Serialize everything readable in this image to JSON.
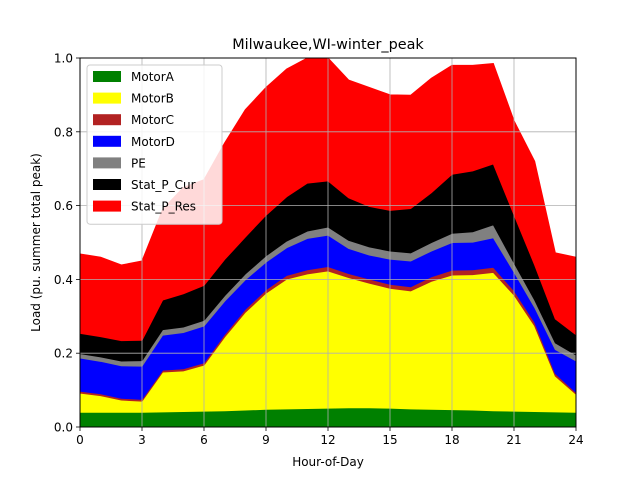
{
  "chart_data": {
    "type": "area",
    "stacked": true,
    "title": "Milwaukee,WI-winter_peak",
    "xlabel": "Hour-of-Day",
    "ylabel": "Load (pu. summer total peak)",
    "xlim": [
      0,
      24
    ],
    "ylim": [
      0,
      1.0
    ],
    "xticks": [
      "0",
      "3",
      "6",
      "9",
      "12",
      "15",
      "18",
      "21",
      "24"
    ],
    "yticks": [
      "0.0",
      "0.2",
      "0.4",
      "0.6",
      "0.8",
      "1.0"
    ],
    "grid": true,
    "legend_position": "upper-left",
    "x": [
      0,
      1,
      2,
      3,
      4,
      5,
      6,
      7,
      8,
      9,
      10,
      11,
      12,
      13,
      14,
      15,
      16,
      17,
      18,
      19,
      20,
      21,
      22,
      23,
      24
    ],
    "series": [
      {
        "name": "MotorA",
        "color": "#008000",
        "values": [
          0.04,
          0.04,
          0.04,
          0.04,
          0.041,
          0.042,
          0.043,
          0.044,
          0.046,
          0.048,
          0.049,
          0.05,
          0.051,
          0.052,
          0.052,
          0.051,
          0.049,
          0.048,
          0.047,
          0.046,
          0.044,
          0.043,
          0.042,
          0.041,
          0.04
        ]
      },
      {
        "name": "MotorB",
        "color": "#ffff00",
        "values": [
          0.052,
          0.045,
          0.033,
          0.03,
          0.108,
          0.11,
          0.125,
          0.2,
          0.265,
          0.315,
          0.352,
          0.365,
          0.372,
          0.353,
          0.338,
          0.325,
          0.32,
          0.347,
          0.365,
          0.367,
          0.375,
          0.315,
          0.232,
          0.097,
          0.049
        ]
      },
      {
        "name": "MotorC",
        "color": "#b22222",
        "values": [
          0.005,
          0.005,
          0.005,
          0.005,
          0.005,
          0.006,
          0.006,
          0.007,
          0.008,
          0.009,
          0.01,
          0.011,
          0.012,
          0.011,
          0.011,
          0.011,
          0.011,
          0.012,
          0.013,
          0.013,
          0.014,
          0.012,
          0.01,
          0.007,
          0.005
        ]
      },
      {
        "name": "MotorD",
        "color": "#0000ff",
        "values": [
          0.09,
          0.088,
          0.088,
          0.09,
          0.095,
          0.098,
          0.1,
          0.09,
          0.08,
          0.075,
          0.075,
          0.085,
          0.085,
          0.068,
          0.065,
          0.068,
          0.07,
          0.07,
          0.075,
          0.075,
          0.08,
          0.05,
          0.04,
          0.065,
          0.085
        ]
      },
      {
        "name": "PE",
        "color": "#808080",
        "values": [
          0.012,
          0.012,
          0.013,
          0.015,
          0.015,
          0.015,
          0.015,
          0.015,
          0.016,
          0.017,
          0.018,
          0.02,
          0.022,
          0.022,
          0.022,
          0.022,
          0.022,
          0.023,
          0.025,
          0.028,
          0.035,
          0.025,
          0.02,
          0.018,
          0.016
        ]
      },
      {
        "name": "Stat_P_Cur",
        "color": "#000000",
        "values": [
          0.055,
          0.055,
          0.055,
          0.055,
          0.08,
          0.09,
          0.095,
          0.098,
          0.1,
          0.11,
          0.12,
          0.13,
          0.125,
          0.115,
          0.11,
          0.11,
          0.12,
          0.135,
          0.16,
          0.165,
          0.165,
          0.13,
          0.095,
          0.065,
          0.055
        ]
      },
      {
        "name": "Stat_P_Res",
        "color": "#ff0000",
        "values": [
          0.215,
          0.215,
          0.205,
          0.215,
          0.246,
          0.288,
          0.286,
          0.316,
          0.345,
          0.346,
          0.346,
          0.339,
          0.333,
          0.319,
          0.322,
          0.313,
          0.307,
          0.31,
          0.295,
          0.286,
          0.272,
          0.255,
          0.281,
          0.179,
          0.21
        ]
      }
    ]
  }
}
